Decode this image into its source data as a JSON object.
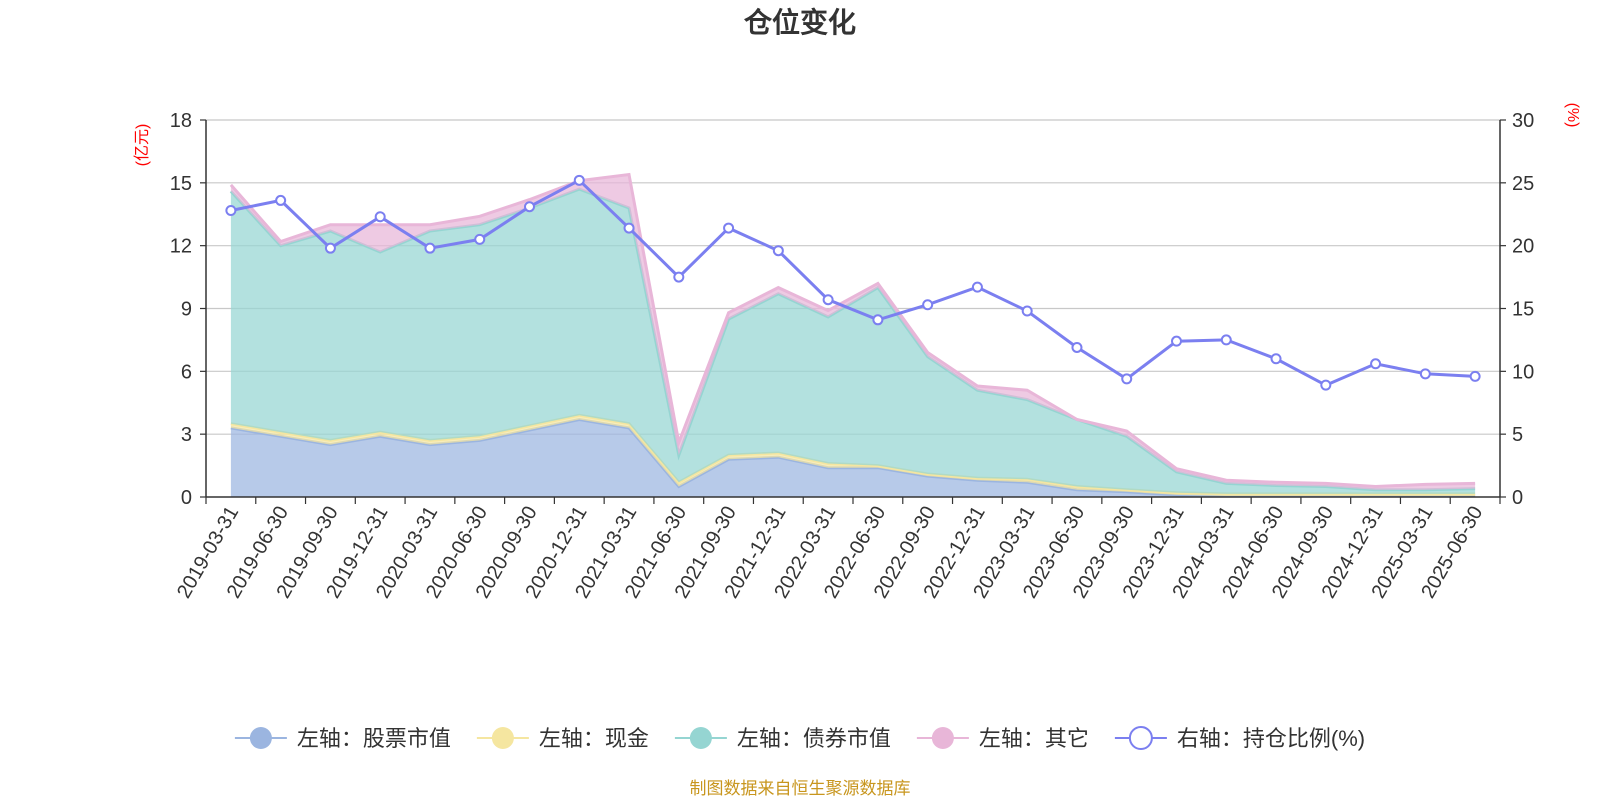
{
  "chart_data": {
    "type": "area",
    "title": "仓位变化",
    "left_axis_unit": "(亿元)",
    "right_axis_unit": "(%)",
    "left_ylim": [
      0,
      18
    ],
    "left_yticks": [
      0,
      3,
      6,
      9,
      12,
      15,
      18
    ],
    "right_ylim": [
      0,
      30
    ],
    "right_yticks": [
      0,
      5,
      10,
      15,
      20,
      25,
      30
    ],
    "grid": true,
    "legend_position": "bottom",
    "categories": [
      "2019-03-31",
      "2019-06-30",
      "2019-09-30",
      "2019-12-31",
      "2020-03-31",
      "2020-06-30",
      "2020-09-30",
      "2020-12-31",
      "2021-03-31",
      "2021-06-30",
      "2021-09-30",
      "2021-12-31",
      "2022-03-31",
      "2022-06-30",
      "2022-09-30",
      "2022-12-31",
      "2023-03-31",
      "2023-06-30",
      "2023-09-30",
      "2023-12-31",
      "2024-03-31",
      "2024-06-30",
      "2024-09-30",
      "2024-12-31",
      "2025-03-31",
      "2025-06-30"
    ],
    "stacked_series": [
      {
        "name": "左轴：股票市值",
        "axis": "left",
        "color": "#9bb5e0",
        "values": [
          3.3,
          2.9,
          2.5,
          2.9,
          2.5,
          2.7,
          3.2,
          3.7,
          3.3,
          0.5,
          1.8,
          1.9,
          1.4,
          1.4,
          1.0,
          0.8,
          0.7,
          0.35,
          0.25,
          0.1,
          0.05,
          0.05,
          0.05,
          0.05,
          0.05,
          0.05
        ]
      },
      {
        "name": "左轴：现金",
        "axis": "left",
        "color": "#f5e6a0",
        "values": [
          0.2,
          0.2,
          0.2,
          0.2,
          0.2,
          0.2,
          0.2,
          0.2,
          0.2,
          0.2,
          0.2,
          0.2,
          0.2,
          0.1,
          0.1,
          0.1,
          0.15,
          0.15,
          0.1,
          0.1,
          0.1,
          0.1,
          0.1,
          0.1,
          0.1,
          0.1
        ]
      },
      {
        "name": "左轴：债券市值",
        "axis": "left",
        "color": "#95d5d2",
        "values": [
          11.1,
          8.9,
          10.0,
          8.6,
          10.0,
          10.1,
          10.4,
          10.8,
          10.3,
          1.3,
          6.5,
          7.6,
          7.0,
          8.5,
          5.6,
          4.2,
          3.8,
          3.2,
          2.55,
          1.0,
          0.5,
          0.4,
          0.35,
          0.2,
          0.2,
          0.25
        ]
      },
      {
        "name": "左轴：其它",
        "axis": "left",
        "color": "#e8b6d8",
        "values": [
          0.3,
          0.2,
          0.3,
          1.3,
          0.3,
          0.4,
          0.4,
          0.4,
          1.6,
          0.6,
          0.3,
          0.3,
          0.3,
          0.2,
          0.2,
          0.2,
          0.45,
          0.0,
          0.25,
          0.15,
          0.15,
          0.15,
          0.15,
          0.15,
          0.25,
          0.25
        ]
      }
    ],
    "line_series": {
      "name": "右轴：持仓比例(%)",
      "axis": "right",
      "color": "#7b7ff0",
      "values": [
        22.8,
        23.6,
        19.8,
        22.3,
        19.8,
        20.5,
        23.1,
        25.2,
        21.4,
        17.5,
        21.4,
        19.6,
        15.7,
        14.1,
        15.3,
        16.7,
        14.8,
        11.9,
        9.4,
        12.4,
        12.5,
        11.0,
        8.9,
        10.6,
        9.8,
        9.6
      ]
    }
  },
  "source_text": "制图数据来自恒生聚源数据库"
}
